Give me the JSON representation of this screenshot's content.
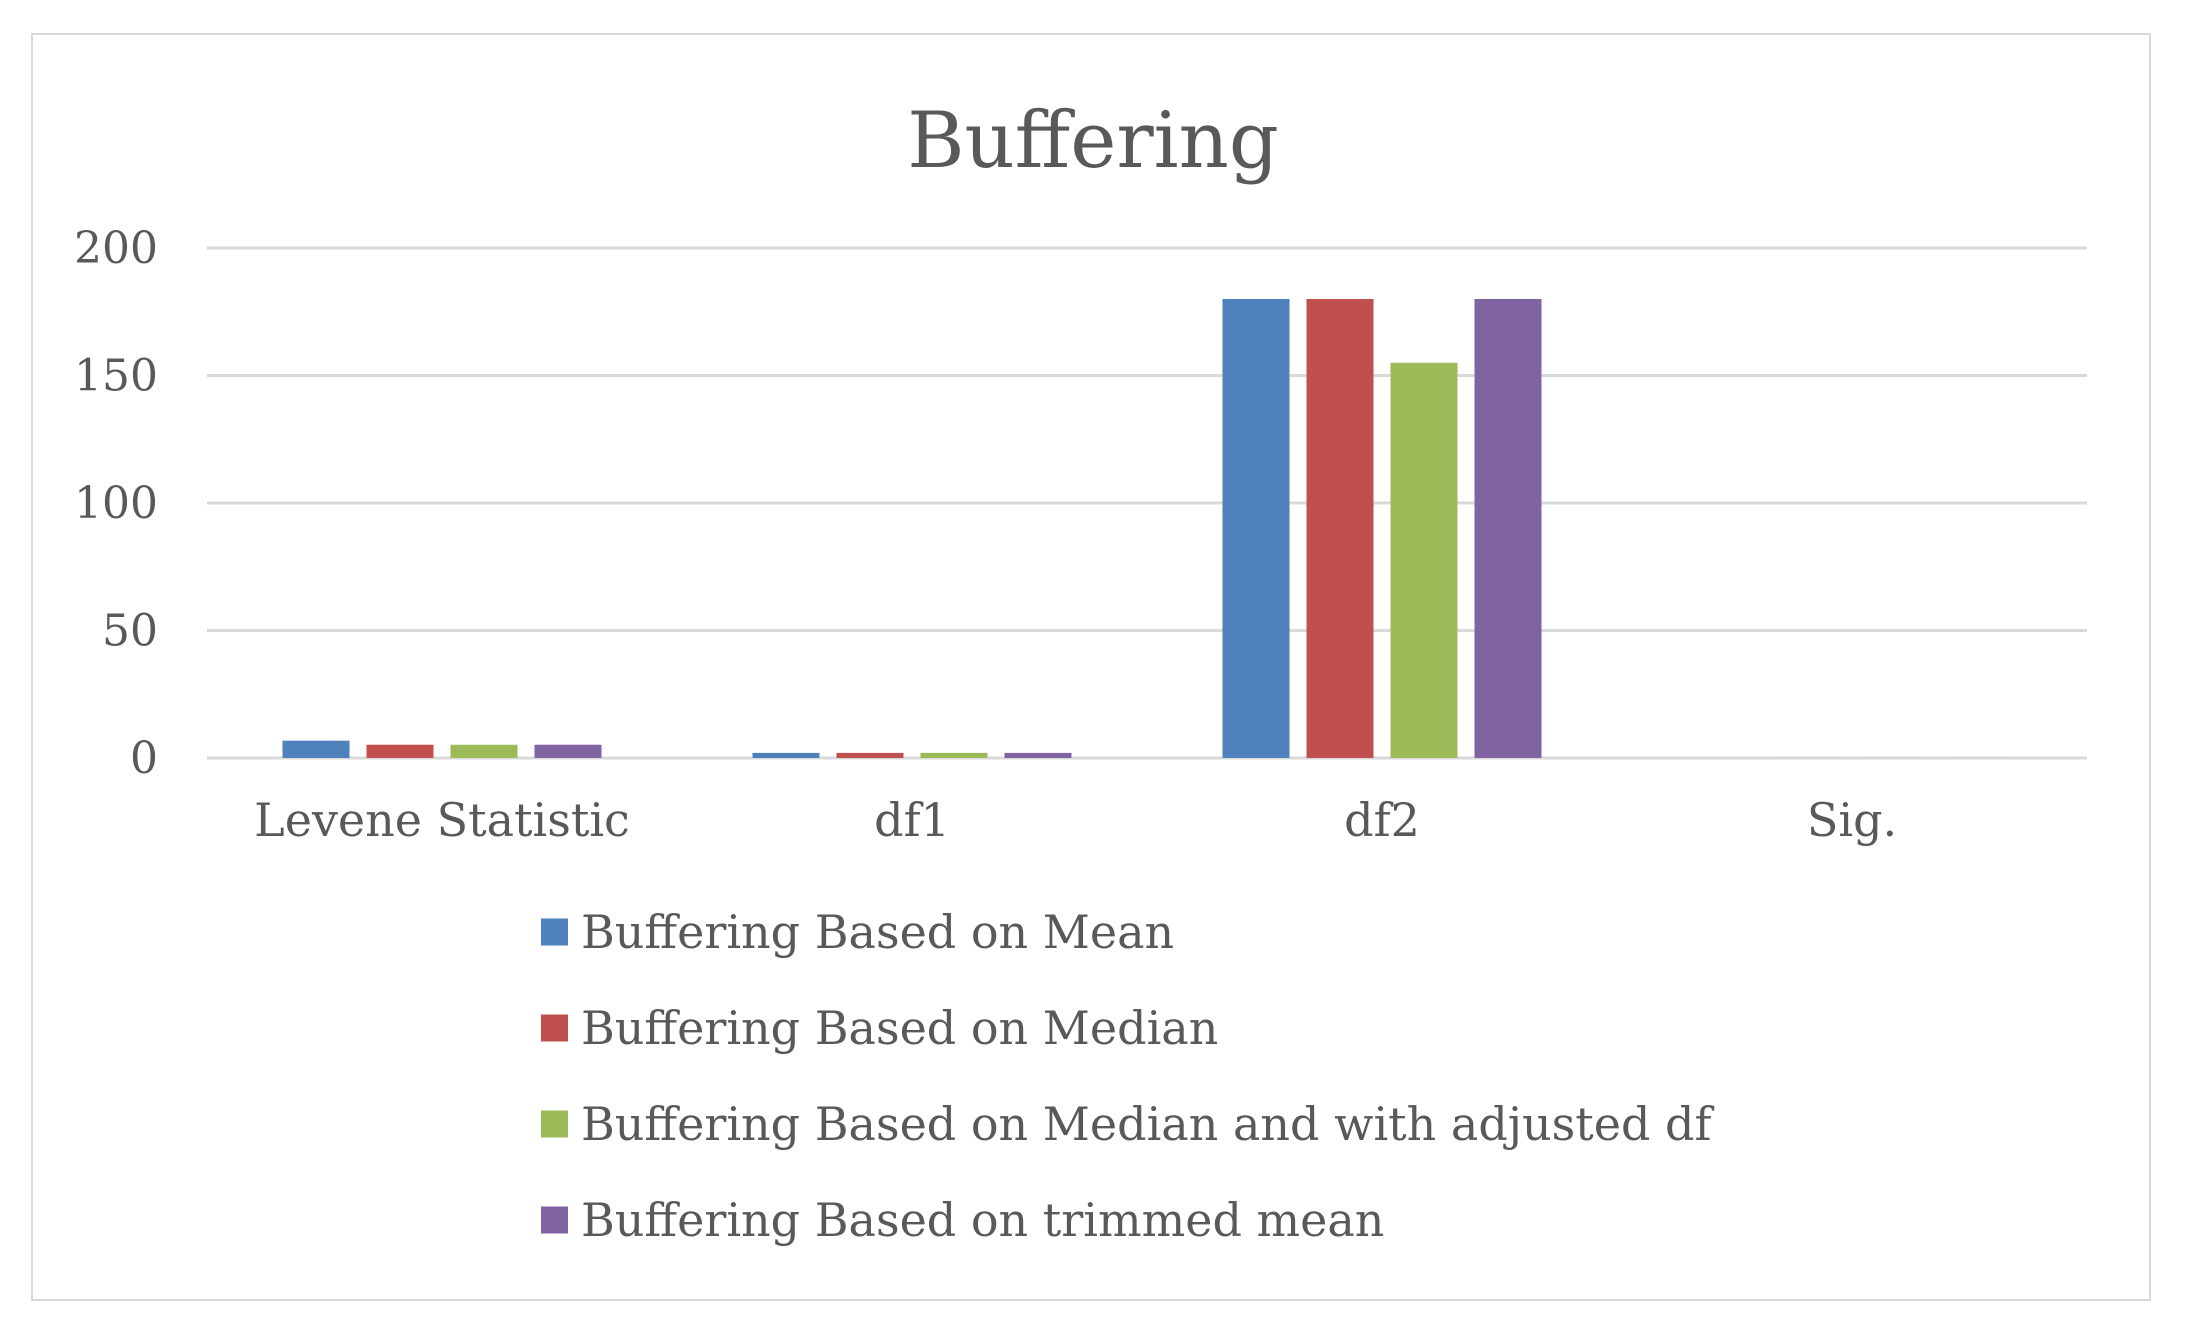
{
  "chart_data": {
    "type": "bar",
    "title": "Buffering",
    "xlabel": "",
    "ylabel": "",
    "categories": [
      "Levene Statistic",
      "df1",
      "df2",
      "Sig."
    ],
    "ylim": [
      0,
      200
    ],
    "yticks": [
      0,
      50,
      100,
      150,
      200
    ],
    "grid": true,
    "legend_position": "bottom",
    "series": [
      {
        "name": "Buffering Based on Mean",
        "color": "#4f81bd",
        "values": [
          6.8,
          2,
          180,
          0.001
        ]
      },
      {
        "name": "Buffering Based on Median",
        "color": "#c0504d",
        "values": [
          5.2,
          2,
          180,
          0.007
        ]
      },
      {
        "name": "Buffering Based on Median and with adjusted df",
        "color": "#9bbb59",
        "values": [
          5.2,
          2,
          155,
          0.007
        ]
      },
      {
        "name": "Buffering Based on trimmed mean",
        "color": "#8064a2",
        "values": [
          5.2,
          2,
          180,
          0.002
        ]
      }
    ]
  }
}
